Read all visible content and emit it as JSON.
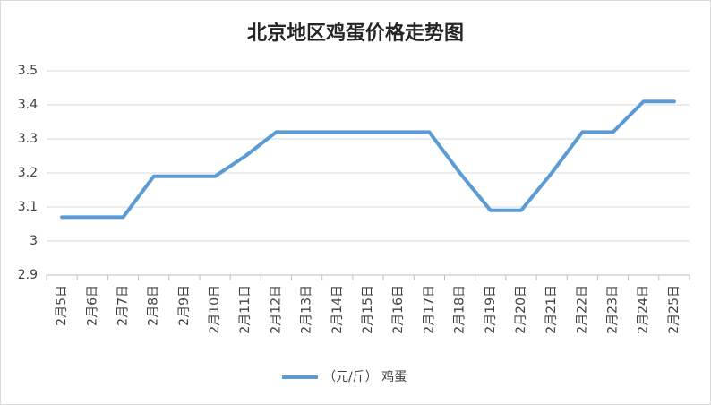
{
  "chart_data": {
    "type": "line",
    "title": "北京地区鸡蛋价格走势图",
    "categories": [
      "2月5日",
      "2月6日",
      "2月7日",
      "2月8日",
      "2月9日",
      "2月10日",
      "2月11日",
      "2月12日",
      "2月13日",
      "2月14日",
      "2月15日",
      "2月16日",
      "2月17日",
      "2月18日",
      "2月19日",
      "2月20日",
      "2月21日",
      "2月22日",
      "2月23日",
      "2月24日",
      "2月25日"
    ],
    "series": [
      {
        "name": "（元/斤） 鸡蛋",
        "color": "#5b9bd5",
        "values": [
          3.07,
          3.07,
          3.07,
          3.19,
          3.19,
          3.19,
          3.25,
          3.32,
          3.32,
          3.32,
          3.32,
          3.32,
          3.32,
          3.2,
          3.09,
          3.09,
          3.2,
          3.32,
          3.32,
          3.41,
          3.41
        ]
      }
    ],
    "ylim": [
      2.9,
      3.5
    ],
    "yticks": [
      2.9,
      3,
      3.1,
      3.2,
      3.3,
      3.4,
      3.5
    ],
    "grid": true,
    "legend": "bottom"
  }
}
